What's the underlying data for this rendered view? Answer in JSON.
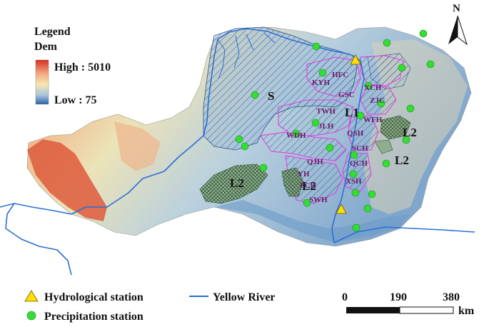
{
  "legend": {
    "title": "Legend",
    "dem_label": "Dem",
    "high_label": "High : 5010",
    "low_label": "Low : 75",
    "colors": {
      "high": "#d7301f",
      "mid": "#f6e8b0",
      "low": "#2c5fa8"
    }
  },
  "north_label": "N",
  "regions": {
    "s": "S",
    "l1": "L1",
    "l2_list": [
      "L2",
      "L2",
      "L2",
      "L2"
    ]
  },
  "subbasins": [
    "HFC",
    "KYH",
    "XCH",
    "GSC",
    "ZJC",
    "TWH",
    "WFH",
    "JLH",
    "WDH",
    "QSH",
    "SCH",
    "QJH",
    "QCH",
    "YH",
    "XSH",
    "FCH",
    "SWH"
  ],
  "bottom_legend": {
    "hydro": "Hydrological station",
    "precip": "Precipitation station",
    "river": "Yellow River"
  },
  "scale": {
    "ticks": [
      "0",
      "190",
      "380"
    ],
    "unit": "km"
  },
  "colors": {
    "river": "#2a6fd6",
    "precip_station": "#33dd33",
    "hydro_station": "#ffe000",
    "subbasin_outline": "#e040e0",
    "l2_fill": "#4e7c4a",
    "text_subbasin": "#6a1b6a"
  }
}
